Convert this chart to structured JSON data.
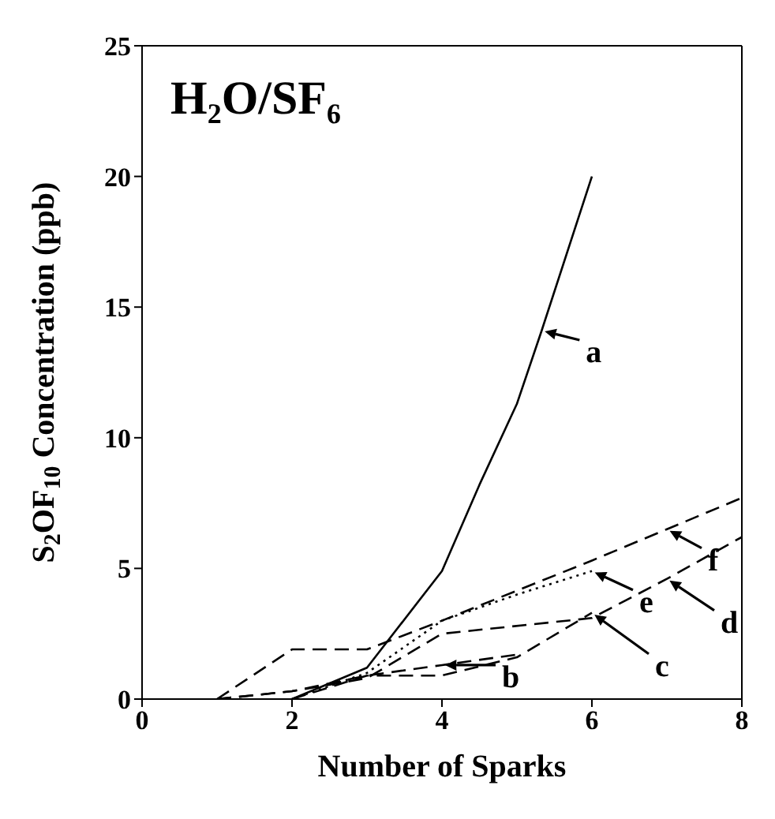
{
  "chart_data": {
    "type": "line",
    "title": "H₂O/SF₆",
    "xlabel": "Number of Sparks",
    "ylabel": "S$_{2}$OF$_{10}$ Concentration (ppb)",
    "xlim": [
      0,
      8
    ],
    "xticks": [
      0,
      2,
      4,
      6,
      8
    ],
    "ylim": [
      0,
      25
    ],
    "yticks": [
      0,
      5,
      10,
      15,
      20,
      25
    ],
    "grid": false,
    "legend": "right",
    "marker": "none",
    "series": [
      {
        "name": "a",
        "color": "#000000",
        "line_style": "solid",
        "x": [
          2,
          3,
          4,
          4.5,
          5,
          5.33,
          6
        ],
        "values": [
          0,
          1.2,
          4.9,
          8.2,
          11.3,
          14.1,
          20
        ]
      },
      {
        "name": "b",
        "color": "#000000",
        "line_style": "dashed",
        "x": [
          1,
          2,
          3,
          4,
          5
        ],
        "values": [
          0,
          0.3,
          0.9,
          1.3,
          1.7
        ]
      },
      {
        "name": "c",
        "color": "#000000",
        "line_style": "dashed",
        "x": [
          2,
          3,
          4,
          5,
          6
        ],
        "values": [
          0,
          0.9,
          0.9,
          1.6,
          3.3
        ]
      },
      {
        "name": "d",
        "color": "#000000",
        "line_style": "dashed",
        "x": [
          1,
          2,
          3,
          4,
          6,
          7,
          8
        ],
        "values": [
          0,
          0.3,
          0.8,
          2.5,
          3.1,
          4.6,
          6.2
        ]
      },
      {
        "name": "e",
        "color": "#000000",
        "line_style": "dotted",
        "x": [
          2,
          3,
          4,
          5,
          6
        ],
        "values": [
          0,
          1.0,
          3.0,
          4.0,
          4.9
        ]
      },
      {
        "name": "f",
        "color": "#000000",
        "line_style": "dashed",
        "x": [
          1,
          2,
          3,
          4,
          6,
          7,
          8
        ],
        "values": [
          0,
          1.9,
          1.9,
          3.0,
          5.3,
          6.5,
          7.7
        ]
      }
    ]
  }
}
